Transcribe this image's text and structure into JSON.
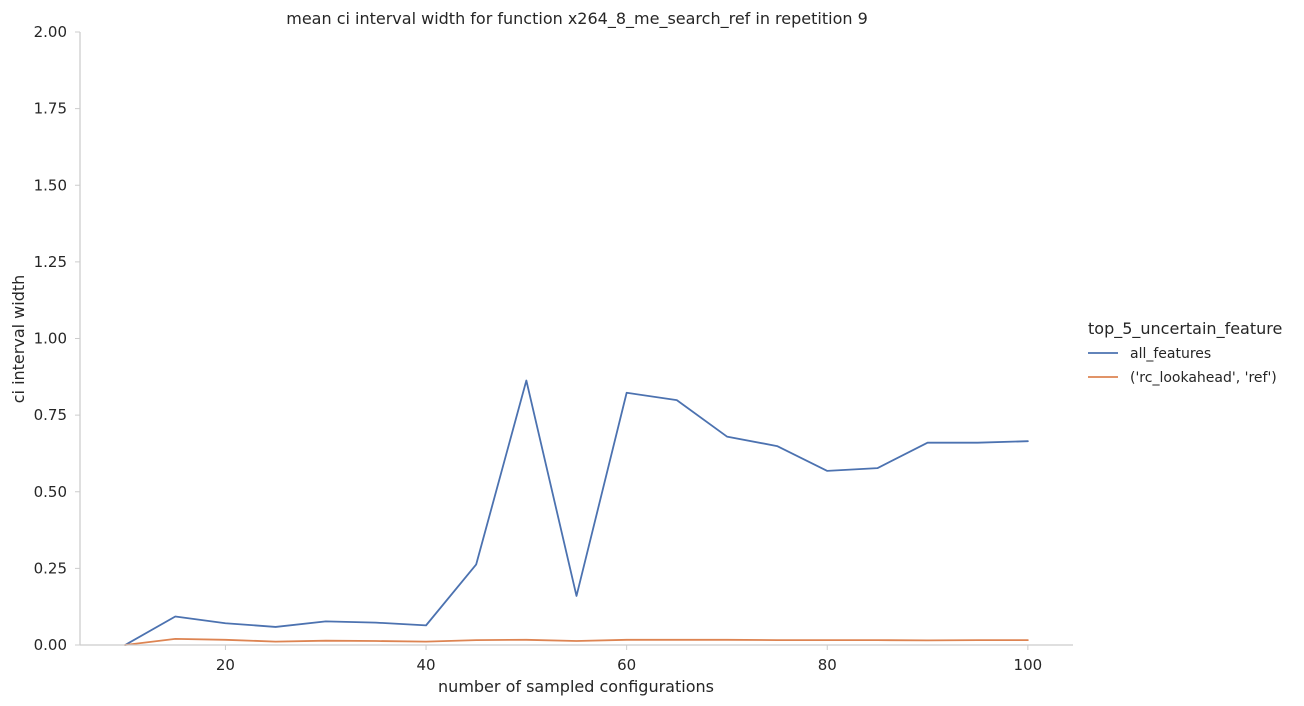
{
  "chart_data": {
    "type": "line",
    "title": "mean ci interval width for function x264_8_me_search_ref in repetition 9",
    "xlabel": "number of sampled configurations",
    "ylabel": "ci interval width",
    "xlim": [
      5.5,
      104.5
    ],
    "ylim": [
      0,
      2
    ],
    "xticks": [
      20,
      40,
      60,
      80,
      100
    ],
    "yticks": [
      0.0,
      0.25,
      0.5,
      0.75,
      1.0,
      1.25,
      1.5,
      1.75,
      2.0
    ],
    "ytick_labels": [
      "0.00",
      "0.25",
      "0.50",
      "0.75",
      "1.00",
      "1.25",
      "1.50",
      "1.75",
      "2.00"
    ],
    "grid": false,
    "legend": {
      "title": "top_5_uncertain_feature",
      "placement": "right"
    },
    "x": [
      10,
      15,
      20,
      25,
      30,
      35,
      40,
      45,
      50,
      55,
      60,
      65,
      70,
      75,
      80,
      85,
      90,
      95,
      100
    ],
    "series": [
      {
        "name": "all_features",
        "color": "#4c72b0",
        "values": [
          0.0,
          0.093,
          0.071,
          0.059,
          0.077,
          0.073,
          0.064,
          0.263,
          0.863,
          0.16,
          0.823,
          0.799,
          0.68,
          0.649,
          0.568,
          0.577,
          0.66,
          0.66,
          0.665
        ]
      },
      {
        "name": "('rc_lookahead', 'ref')",
        "color": "#dd8452",
        "values": [
          0.0,
          0.02,
          0.017,
          0.011,
          0.014,
          0.013,
          0.011,
          0.016,
          0.017,
          0.013,
          0.017,
          0.017,
          0.017,
          0.016,
          0.016,
          0.016,
          0.015,
          0.016,
          0.016
        ]
      }
    ]
  }
}
